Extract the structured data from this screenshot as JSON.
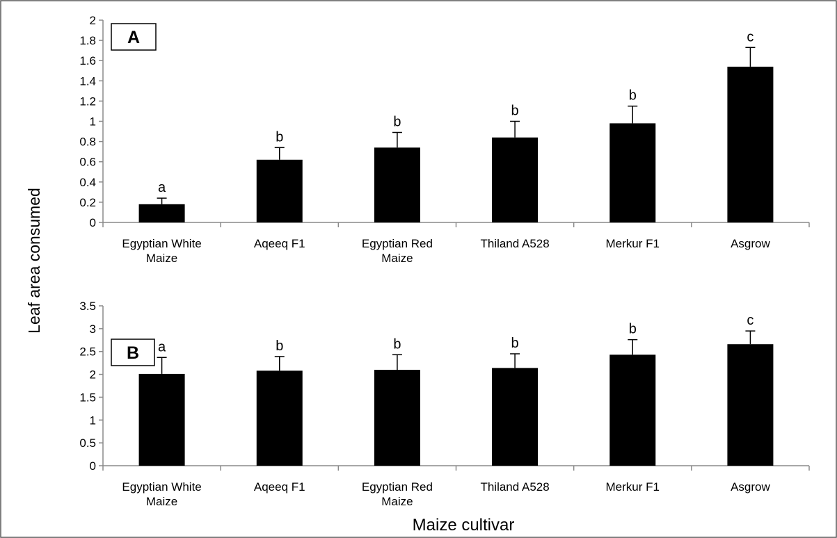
{
  "figure": {
    "y_axis_title": "Leaf area consumed",
    "x_axis_title": "Maize cultivar"
  },
  "chart_data": [
    {
      "type": "bar",
      "panel_label": "A",
      "categories": [
        [
          "Egyptian White",
          "Maize"
        ],
        [
          "Aqeeq F1"
        ],
        [
          "Egyptian Red",
          "Maize"
        ],
        [
          "Thiland A528"
        ],
        [
          "Merkur F1"
        ],
        [
          "Asgrow"
        ]
      ],
      "values": [
        0.18,
        0.62,
        0.74,
        0.84,
        0.98,
        1.54
      ],
      "error": [
        0.06,
        0.12,
        0.15,
        0.16,
        0.17,
        0.19
      ],
      "significance_letters": [
        "a",
        "b",
        "b",
        "b",
        "b",
        "c"
      ],
      "ylim": [
        0,
        2
      ],
      "yticks": [
        "0",
        "0.2",
        "0.4",
        "0.6",
        "0.8",
        "1",
        "1.2",
        "1.4",
        "1.6",
        "1.8",
        "2"
      ],
      "ytick_values": [
        0,
        0.2,
        0.4,
        0.6,
        0.8,
        1,
        1.2,
        1.4,
        1.6,
        1.8,
        2
      ],
      "bar_color": "#000000",
      "grid": false,
      "legend": "none"
    },
    {
      "type": "bar",
      "panel_label": "B",
      "categories": [
        [
          "Egyptian White",
          "Maize"
        ],
        [
          "Aqeeq F1"
        ],
        [
          "Egyptian Red",
          "Maize"
        ],
        [
          "Thiland A528"
        ],
        [
          "Merkur F1"
        ],
        [
          "Asgrow"
        ]
      ],
      "values": [
        2.01,
        2.08,
        2.1,
        2.14,
        2.43,
        2.66
      ],
      "error": [
        0.36,
        0.31,
        0.33,
        0.31,
        0.33,
        0.29
      ],
      "significance_letters": [
        "a",
        "b",
        "b",
        "b",
        "b",
        "c"
      ],
      "ylim": [
        0,
        3.5
      ],
      "yticks": [
        "0",
        "0.5",
        "1",
        "1.5",
        "2",
        "2.5",
        "3",
        "3.5"
      ],
      "ytick_values": [
        0,
        0.5,
        1,
        1.5,
        2,
        2.5,
        3,
        3.5
      ],
      "bar_color": "#000000",
      "grid": false,
      "legend": "none"
    }
  ]
}
